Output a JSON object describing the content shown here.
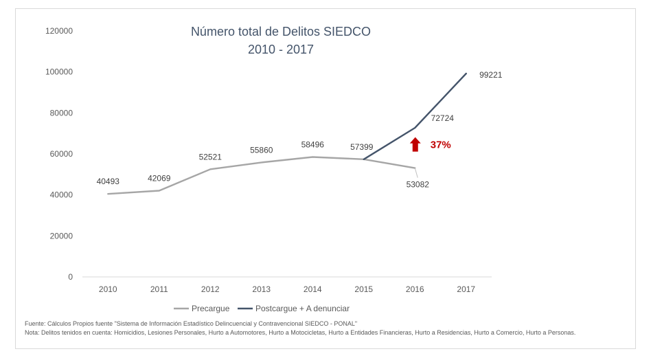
{
  "chart_data": {
    "type": "line",
    "title": "Número total de Delitos SIEDCO",
    "subtitle": "2010 - 2017",
    "categories": [
      "2010",
      "2011",
      "2012",
      "2013",
      "2014",
      "2015",
      "2016",
      "2017"
    ],
    "ylim": [
      0,
      120000
    ],
    "yticks": [
      "0",
      "20000",
      "40000",
      "60000",
      "80000",
      "100000",
      "120000"
    ],
    "xlabel": "",
    "ylabel": "",
    "grid": false,
    "legend_position": "bottom",
    "series": [
      {
        "name": "Precargue",
        "color": "#a6a6a6",
        "values": [
          40493,
          42069,
          52521,
          55860,
          58496,
          57399,
          53082,
          null
        ],
        "labels": [
          "40493",
          "42069",
          "52521",
          "55860",
          "58496",
          "57399",
          "53082",
          ""
        ]
      },
      {
        "name": "Postcargue + A denunciar",
        "color": "#44546a",
        "values": [
          null,
          null,
          null,
          null,
          null,
          57399,
          72724,
          99221
        ],
        "labels": [
          "",
          "",
          "",
          "",
          "",
          "",
          "72724",
          "99221"
        ]
      }
    ],
    "annotation": {
      "text": "37%",
      "color": "#c00000",
      "arrow": "up"
    }
  },
  "footer": {
    "source": "Fuente: Cálculos Propios fuente \"Sistema de Información Estadístico Delincuencial y Contravencional SIEDCO - PONAL\"",
    "note": "Nota: Delitos tenidos en cuenta: Homicidios, Lesiones Personales, Hurto a Automotores, Hurto a Motocicletas, Hurto a Entidades Financieras, Hurto a Residencias, Hurto a Comercio, Hurto a Personas."
  }
}
